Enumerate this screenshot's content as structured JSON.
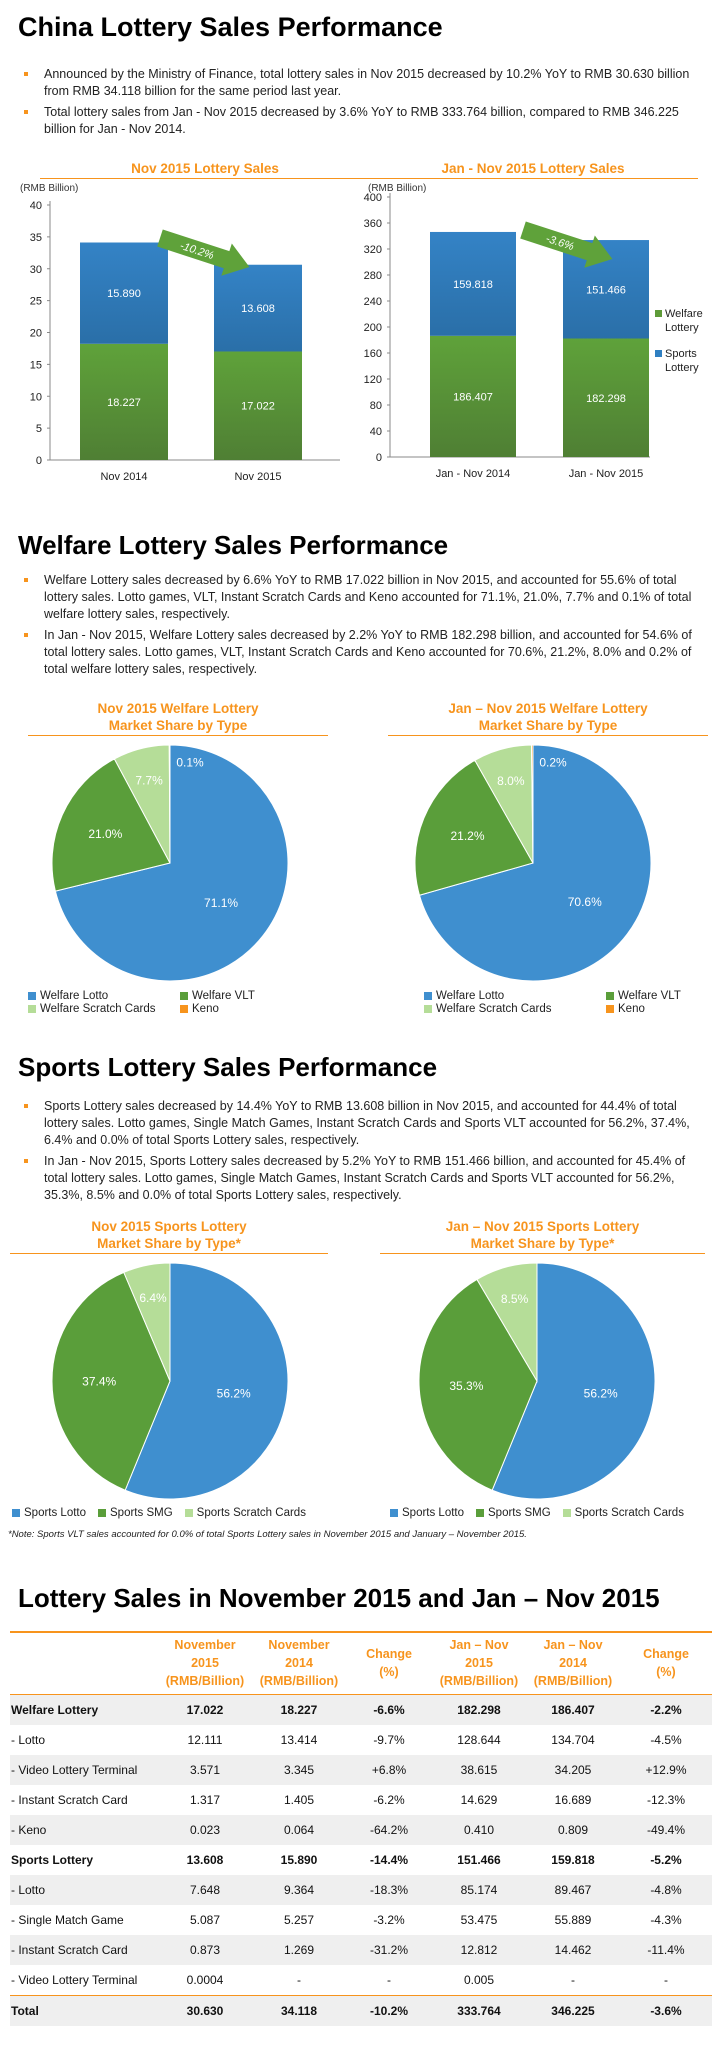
{
  "section1": {
    "title": "China Lottery Sales Performance",
    "bullets": [
      "Announced by the Ministry of Finance, total lottery sales in Nov 2015 decreased by 10.2% YoY to RMB 30.630 billion from RMB 34.118 billion for the same period last year.",
      "Total lottery sales from Jan - Nov 2015 decreased by 3.6% YoY to RMB 333.764 billion, compared to RMB 346.225 billion for Jan - Nov 2014."
    ]
  },
  "section2": {
    "title": "Welfare Lottery Sales Performance",
    "bullets": [
      "Welfare Lottery sales decreased by 6.6% YoY to RMB 17.022 billion in Nov 2015, and accounted for 55.6% of total lottery sales. Lotto games, VLT, Instant Scratch Cards and Keno accounted for 71.1%, 21.0%, 7.7% and 0.1% of total welfare lottery sales, respectively.",
      "In Jan - Nov 2015, Welfare Lottery sales decreased by 2.2% YoY to RMB 182.298 billion, and accounted for 54.6% of total lottery sales. Lotto games, VLT, Instant Scratch Cards and Keno accounted for 70.6%, 21.2%, 8.0% and 0.2% of total welfare lottery sales, respectively."
    ]
  },
  "section3": {
    "title": "Sports Lottery Sales Performance",
    "bullets": [
      "Sports Lottery sales decreased by 14.4% YoY to RMB 13.608 billion in Nov 2015, and accounted for 44.4% of total lottery sales. Lotto games, Single Match Games, Instant Scratch Cards and Sports VLT accounted for 56.2%, 37.4%, 6.4% and 0.0% of total Sports Lottery sales, respectively.",
      "In Jan - Nov 2015, Sports Lottery sales decreased by 5.2% YoY to RMB 151.466 billion, and accounted for 45.4% of total lottery sales. Lotto games, Single Match Games, Instant Scratch Cards and Sports VLT accounted for 56.2%, 35.3%, 8.5% and 0.0% of total Sports Lottery sales, respectively."
    ],
    "note": "*Note: Sports VLT sales accounted for 0.0% of total Sports Lottery sales in November 2015 and January – November 2015."
  },
  "colors": {
    "welfare": "#5e9b38",
    "sports": "#2f7fc1",
    "lotto_blue": "#3f8fcf",
    "vlt_green": "#5a9e3a",
    "scratch": "#b5dd98",
    "keno": "#f7941d",
    "accent": "#f7941d"
  },
  "chart_data": [
    {
      "type": "bar",
      "stacked": true,
      "title": "Nov 2015 Lottery Sales",
      "ylabel": "(RMB Billion)",
      "categories": [
        "Nov 2014",
        "Nov 2015"
      ],
      "series": [
        {
          "name": "Welfare Lottery",
          "values": [
            18.227,
            17.022
          ]
        },
        {
          "name": "Sports Lottery",
          "values": [
            15.89,
            13.608
          ]
        }
      ],
      "ylim": [
        0,
        40
      ],
      "yticks": [
        "0",
        "5",
        "10",
        "15",
        "20",
        "25",
        "30",
        "35",
        "40"
      ],
      "annotation": "-10.2%"
    },
    {
      "type": "bar",
      "stacked": true,
      "title": "Jan - Nov 2015 Lottery Sales",
      "ylabel": "(RMB Billion)",
      "categories": [
        "Jan - Nov 2014",
        "Jan - Nov 2015"
      ],
      "series": [
        {
          "name": "Welfare Lottery",
          "values": [
            186.407,
            182.298
          ]
        },
        {
          "name": "Sports Lottery",
          "values": [
            159.818,
            151.466
          ]
        }
      ],
      "ylim": [
        0,
        400
      ],
      "yticks": [
        "0",
        "40",
        "80",
        "120",
        "160",
        "200",
        "240",
        "280",
        "320",
        "360",
        "400"
      ],
      "annotation": "-3.6%",
      "legend": [
        "Welfare Lottery",
        "Sports Lottery"
      ],
      "legend_position": "right"
    },
    {
      "type": "pie",
      "title_lines": [
        "Nov 2015 Welfare Lottery",
        "Market Share by Type"
      ],
      "slices": [
        {
          "name": "Welfare Lotto",
          "value": 71.1,
          "label": "71.1%"
        },
        {
          "name": "Welfare VLT",
          "value": 21.0,
          "label": "21.0%"
        },
        {
          "name": "Welfare Scratch Cards",
          "value": 7.7,
          "label": "7.7%"
        },
        {
          "name": "Keno",
          "value": 0.1,
          "label": "0.1%"
        }
      ],
      "legend_position": "bottom"
    },
    {
      "type": "pie",
      "title_lines": [
        "Jan – Nov 2015 Welfare Lottery",
        "Market Share by Type"
      ],
      "slices": [
        {
          "name": "Welfare Lotto",
          "value": 70.6,
          "label": "70.6%"
        },
        {
          "name": "Welfare VLT",
          "value": 21.2,
          "label": "21.2%"
        },
        {
          "name": "Welfare Scratch Cards",
          "value": 8.0,
          "label": "8.0%"
        },
        {
          "name": "Keno",
          "value": 0.2,
          "label": "0.2%"
        }
      ],
      "legend_position": "bottom"
    },
    {
      "type": "pie",
      "title_lines": [
        "Nov 2015 Sports Lottery",
        "Market Share by Type*"
      ],
      "slices": [
        {
          "name": "Sports Lotto",
          "value": 56.2,
          "label": "56.2%"
        },
        {
          "name": "Sports SMG",
          "value": 37.4,
          "label": "37.4%"
        },
        {
          "name": "Sports Scratch Cards",
          "value": 6.4,
          "label": "6.4%"
        }
      ],
      "legend_position": "bottom"
    },
    {
      "type": "pie",
      "title_lines": [
        "Jan – Nov 2015 Sports Lottery",
        "Market Share by Type*"
      ],
      "slices": [
        {
          "name": "Sports Lotto",
          "value": 56.2,
          "label": "56.2%"
        },
        {
          "name": "Sports SMG",
          "value": 35.3,
          "label": "35.3%"
        },
        {
          "name": "Sports Scratch Cards",
          "value": 8.5,
          "label": "8.5%"
        }
      ],
      "legend_position": "bottom"
    },
    {
      "type": "table",
      "title": "Lottery Sales in November 2015 and Jan – Nov 2015",
      "headers": [
        "",
        "November 2015 (RMB/Billion)",
        "November 2014 (RMB/Billion)",
        "Change (%)",
        "Jan – Nov 2015 (RMB/Billion)",
        "Jan – Nov 2014 (RMB/Billion)",
        "Change (%)"
      ],
      "header_lines": [
        [
          ""
        ],
        [
          "November",
          "2015",
          "(RMB/Billion)"
        ],
        [
          "November",
          "2014",
          "(RMB/Billion)"
        ],
        [
          "Change",
          "(%)"
        ],
        [
          "Jan – Nov",
          "2015",
          "(RMB/Billion)"
        ],
        [
          "Jan – Nov",
          "2014",
          "(RMB/Billion)"
        ],
        [
          "Change",
          "(%)"
        ]
      ],
      "rows": [
        [
          "Welfare Lottery",
          "17.022",
          "18.227",
          "-6.6%",
          "182.298",
          "186.407",
          "-2.2%"
        ],
        [
          "- Lotto",
          "12.111",
          "13.414",
          "-9.7%",
          "128.644",
          "134.704",
          "-4.5%"
        ],
        [
          "- Video Lottery Terminal",
          "3.571",
          "3.345",
          "+6.8%",
          "38.615",
          "34.205",
          "+12.9%"
        ],
        [
          "- Instant Scratch Card",
          "1.317",
          "1.405",
          "-6.2%",
          "14.629",
          "16.689",
          "-12.3%"
        ],
        [
          "- Keno",
          "0.023",
          "0.064",
          "-64.2%",
          "0.410",
          "0.809",
          "-49.4%"
        ],
        [
          "Sports Lottery",
          "13.608",
          "15.890",
          "-14.4%",
          "151.466",
          "159.818",
          "-5.2%"
        ],
        [
          "- Lotto",
          "7.648",
          "9.364",
          "-18.3%",
          "85.174",
          "89.467",
          "-4.8%"
        ],
        [
          "- Single Match Game",
          "5.087",
          "5.257",
          "-3.2%",
          "53.475",
          "55.889",
          "-4.3%"
        ],
        [
          "- Instant Scratch Card",
          "0.873",
          "1.269",
          "-31.2%",
          "12.812",
          "14.462",
          "-11.4%"
        ],
        [
          "- Video Lottery Terminal",
          "0.0004",
          "-",
          "-",
          "0.005",
          "-",
          "-"
        ],
        [
          "Total",
          "30.630",
          "34.118",
          "-10.2%",
          "333.764",
          "346.225",
          "-3.6%"
        ]
      ],
      "bold_rows": [
        0,
        5,
        10
      ]
    }
  ]
}
